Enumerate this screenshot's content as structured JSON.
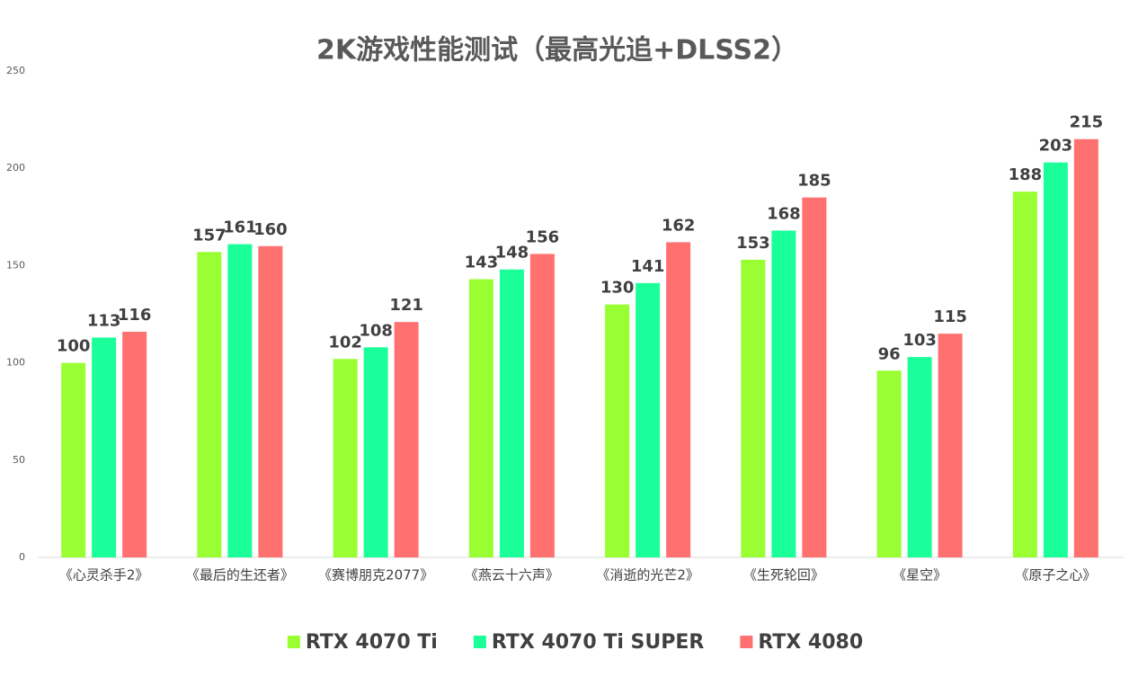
{
  "chart_data": {
    "type": "bar",
    "title": "2K游戏性能测试（最高光追+DLSS2）",
    "categories": [
      "《心灵杀手2》",
      "《最后的生还者》",
      "《赛博朋克2077》",
      "《燕云十六声》",
      "《消逝的光芒2》",
      "《生死轮回》",
      "《星空》",
      "《原子之心》"
    ],
    "series": [
      {
        "name": "RTX 4070 Ti",
        "color": "#99ff33",
        "values": [
          100,
          157,
          102,
          143,
          130,
          153,
          96,
          188
        ]
      },
      {
        "name": "RTX 4070 Ti SUPER",
        "color": "#1aff99",
        "values": [
          113,
          161,
          108,
          148,
          141,
          168,
          103,
          203
        ]
      },
      {
        "name": "RTX 4080",
        "color": "#ff7070",
        "values": [
          116,
          160,
          121,
          156,
          162,
          185,
          115,
          215
        ]
      }
    ],
    "ylim": [
      0,
      250
    ],
    "yticks": [
      0,
      50,
      100,
      150,
      200,
      250
    ],
    "grid": false,
    "legend": "bottom"
  }
}
